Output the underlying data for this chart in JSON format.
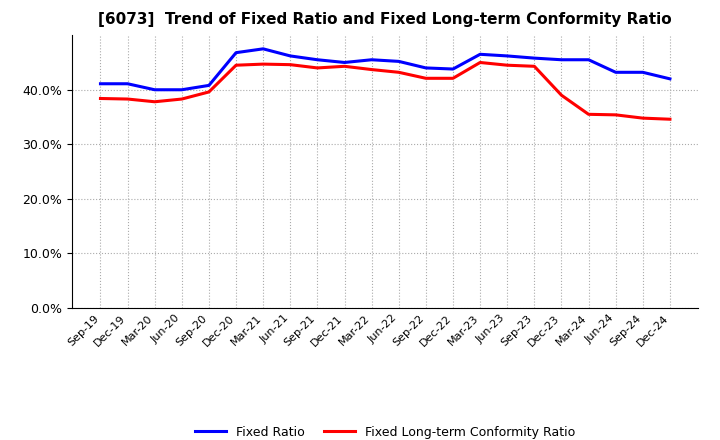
{
  "title": "[6073]  Trend of Fixed Ratio and Fixed Long-term Conformity Ratio",
  "x_labels": [
    "Sep-19",
    "Dec-19",
    "Mar-20",
    "Jun-20",
    "Sep-20",
    "Dec-20",
    "Mar-21",
    "Jun-21",
    "Sep-21",
    "Dec-21",
    "Mar-22",
    "Jun-22",
    "Sep-22",
    "Dec-22",
    "Mar-23",
    "Jun-23",
    "Sep-23",
    "Dec-23",
    "Mar-24",
    "Jun-24",
    "Sep-24",
    "Dec-24"
  ],
  "fixed_ratio": [
    0.411,
    0.411,
    0.4,
    0.4,
    0.408,
    0.468,
    0.475,
    0.462,
    0.455,
    0.45,
    0.455,
    0.452,
    0.44,
    0.438,
    0.465,
    0.462,
    0.458,
    0.455,
    0.455,
    0.432,
    0.432,
    0.42
  ],
  "fixed_lt_ratio": [
    0.384,
    0.383,
    0.378,
    0.383,
    0.396,
    0.445,
    0.447,
    0.446,
    0.44,
    0.443,
    0.437,
    0.432,
    0.421,
    0.421,
    0.45,
    0.445,
    0.443,
    0.39,
    0.355,
    0.354,
    0.348,
    0.346
  ],
  "fixed_ratio_color": "#0000FF",
  "fixed_lt_ratio_color": "#FF0000",
  "ylim": [
    0.0,
    0.5
  ],
  "yticks": [
    0.0,
    0.1,
    0.2,
    0.3,
    0.4
  ],
  "background_color": "#FFFFFF",
  "grid_color": "#AAAAAA"
}
